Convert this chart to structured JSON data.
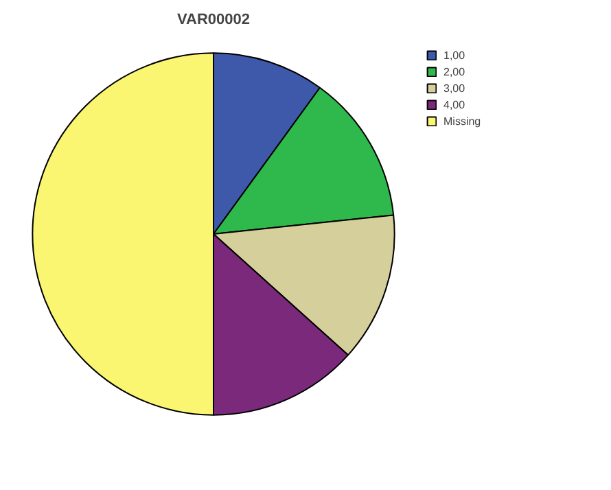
{
  "chart_data": {
    "type": "pie",
    "title": "VAR00002",
    "categories": [
      "1,00",
      "2,00",
      "3,00",
      "4,00",
      "Missing"
    ],
    "values": [
      10,
      13.33,
      13.33,
      13.34,
      50
    ],
    "colors": [
      "#3e59aa",
      "#2fb84b",
      "#d4cf9b",
      "#7b2a7b",
      "#faf672"
    ],
    "legend": "top right"
  }
}
